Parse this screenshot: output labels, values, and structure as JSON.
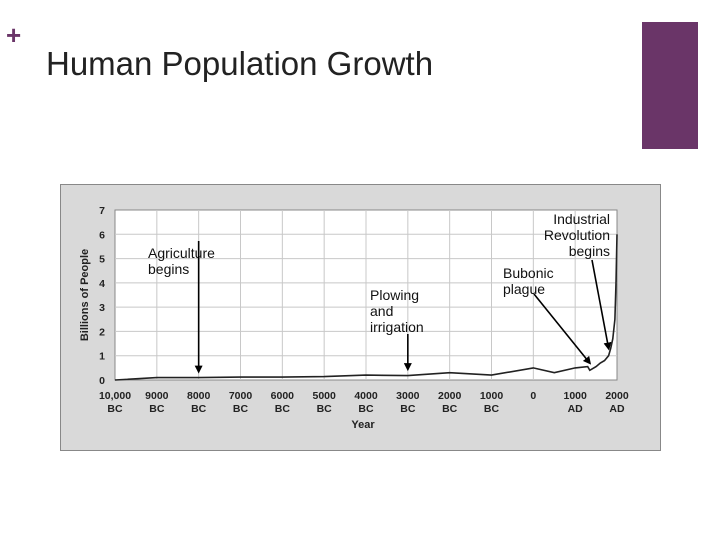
{
  "slide": {
    "plus_symbol": "+",
    "title": "Human Population Growth",
    "accent_color": "#6a3568"
  },
  "chart_data": {
    "type": "line",
    "xlabel": "Year",
    "ylabel": "Billions of People",
    "ylim": [
      0,
      7
    ],
    "y_ticks": [
      "0",
      "1",
      "2",
      "3",
      "4",
      "5",
      "6",
      "7"
    ],
    "x_ticks": [
      {
        "year": -10000,
        "line1": "10,000",
        "line2": "BC"
      },
      {
        "year": -9000,
        "line1": "9000",
        "line2": "BC"
      },
      {
        "year": -8000,
        "line1": "8000",
        "line2": "BC"
      },
      {
        "year": -7000,
        "line1": "7000",
        "line2": "BC"
      },
      {
        "year": -6000,
        "line1": "6000",
        "line2": "BC"
      },
      {
        "year": -5000,
        "line1": "5000",
        "line2": "BC"
      },
      {
        "year": -4000,
        "line1": "4000",
        "line2": "BC"
      },
      {
        "year": -3000,
        "line1": "3000",
        "line2": "BC"
      },
      {
        "year": -2000,
        "line1": "2000",
        "line2": "BC"
      },
      {
        "year": -1000,
        "line1": "1000",
        "line2": "BC"
      },
      {
        "year": 0,
        "line1": "0",
        "line2": ""
      },
      {
        "year": 1000,
        "line1": "1000",
        "line2": "AD"
      },
      {
        "year": 2000,
        "line1": "2000",
        "line2": "AD"
      }
    ],
    "xlim": [
      -10000,
      2000
    ],
    "grid": true,
    "series": [
      {
        "points": [
          [
            -10000,
            0.0
          ],
          [
            -9000,
            0.1
          ],
          [
            -8000,
            0.1
          ],
          [
            -7000,
            0.12
          ],
          [
            -6000,
            0.12
          ],
          [
            -5000,
            0.14
          ],
          [
            -4000,
            0.2
          ],
          [
            -3000,
            0.18
          ],
          [
            -2000,
            0.3
          ],
          [
            -1000,
            0.2
          ],
          [
            0,
            0.5
          ],
          [
            500,
            0.3
          ],
          [
            1000,
            0.5
          ],
          [
            1300,
            0.55
          ],
          [
            1350,
            0.4
          ],
          [
            1400,
            0.45
          ],
          [
            1500,
            0.55
          ],
          [
            1600,
            0.7
          ],
          [
            1700,
            0.8
          ],
          [
            1800,
            1.0
          ],
          [
            1850,
            1.3
          ],
          [
            1900,
            1.7
          ],
          [
            1950,
            2.5
          ],
          [
            1975,
            4.0
          ],
          [
            2000,
            6.0
          ]
        ]
      }
    ],
    "annotations": [
      {
        "lines": [
          "Agriculture",
          "begins"
        ],
        "target_year": -8000,
        "target_value": 0.1
      },
      {
        "lines": [
          "Plowing",
          "and",
          "irrigation"
        ],
        "target_year": -3000,
        "target_value": 0.2
      },
      {
        "lines": [
          "Bubonic",
          "plague"
        ],
        "target_year": 1350,
        "target_value": 0.45
      },
      {
        "lines": [
          "Industrial",
          "Revolution",
          "begins"
        ],
        "target_year": 1800,
        "target_value": 1.05
      }
    ]
  }
}
